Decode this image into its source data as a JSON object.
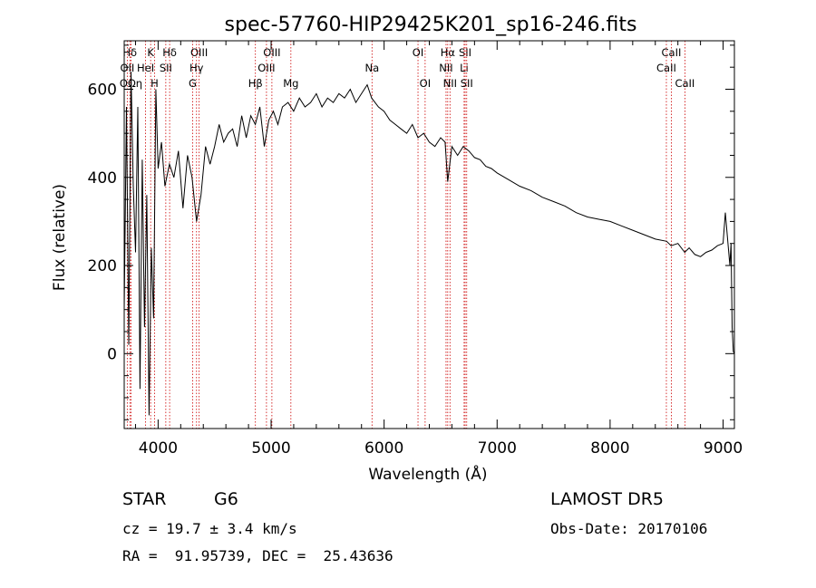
{
  "chart_data": {
    "type": "line",
    "title": "spec-57760-HIP29425K201_sp16-246.fits",
    "xlabel": "Wavelength (Å)",
    "ylabel": "Flux (relative)",
    "xlim": [
      3700,
      9100
    ],
    "ylim": [
      -170,
      710
    ],
    "grid": false,
    "x_ticks": [
      4000,
      5000,
      6000,
      7000,
      8000,
      9000
    ],
    "y_ticks": [
      0,
      200,
      400,
      600
    ],
    "series": [
      {
        "color": "#000000",
        "x": [
          3700,
          3720,
          3740,
          3760,
          3780,
          3800,
          3820,
          3840,
          3860,
          3880,
          3900,
          3920,
          3940,
          3960,
          3980,
          4000,
          4030,
          4060,
          4100,
          4140,
          4180,
          4220,
          4260,
          4300,
          4340,
          4380,
          4420,
          4460,
          4500,
          4540,
          4580,
          4620,
          4660,
          4700,
          4740,
          4780,
          4820,
          4860,
          4900,
          4940,
          4980,
          5020,
          5060,
          5100,
          5150,
          5200,
          5250,
          5300,
          5350,
          5400,
          5450,
          5500,
          5550,
          5600,
          5650,
          5700,
          5750,
          5800,
          5850,
          5890,
          5950,
          6000,
          6050,
          6100,
          6150,
          6200,
          6250,
          6300,
          6350,
          6400,
          6450,
          6500,
          6540,
          6563,
          6600,
          6650,
          6700,
          6750,
          6800,
          6850,
          6900,
          6950,
          7000,
          7100,
          7200,
          7300,
          7400,
          7500,
          7600,
          7700,
          7800,
          7900,
          8000,
          8100,
          8200,
          8300,
          8400,
          8500,
          8540,
          8600,
          8660,
          8700,
          8750,
          8800,
          8850,
          8900,
          8950,
          9000,
          9020,
          9040,
          9060,
          9070,
          9080,
          9090,
          9100
        ],
        "values": [
          100,
          560,
          20,
          640,
          380,
          230,
          560,
          -80,
          440,
          60,
          360,
          -140,
          240,
          80,
          600,
          420,
          480,
          380,
          430,
          400,
          460,
          330,
          450,
          400,
          300,
          360,
          470,
          430,
          470,
          520,
          480,
          500,
          510,
          470,
          540,
          490,
          540,
          520,
          560,
          470,
          530,
          550,
          520,
          560,
          570,
          550,
          580,
          560,
          570,
          590,
          560,
          580,
          570,
          590,
          580,
          600,
          570,
          590,
          610,
          580,
          560,
          550,
          530,
          520,
          510,
          500,
          520,
          490,
          500,
          480,
          470,
          490,
          480,
          390,
          470,
          450,
          470,
          460,
          445,
          440,
          425,
          420,
          410,
          395,
          380,
          370,
          355,
          345,
          335,
          320,
          310,
          305,
          300,
          290,
          280,
          270,
          260,
          255,
          245,
          250,
          230,
          240,
          225,
          220,
          230,
          235,
          245,
          250,
          320,
          260,
          200,
          250,
          60,
          5,
          0
        ]
      }
    ],
    "line_markers": [
      {
        "label": "Hδ",
        "x": 3750,
        "row": 0
      },
      {
        "label": "K",
        "x": 3934,
        "row": 0
      },
      {
        "label": "Hδ",
        "x": 4102,
        "row": 0
      },
      {
        "label": "OIII",
        "x": 4363,
        "row": 0
      },
      {
        "label": "OIII",
        "x": 5007,
        "row": 0
      },
      {
        "label": "OI",
        "x": 6300,
        "row": 0
      },
      {
        "label": "Hα",
        "x": 6563,
        "row": 0
      },
      {
        "label": "SII",
        "x": 6717,
        "row": 0
      },
      {
        "label": "CaII",
        "x": 8542,
        "row": 0
      },
      {
        "label": "OII",
        "x": 3727,
        "row": 1
      },
      {
        "label": "HeI",
        "x": 3889,
        "row": 1
      },
      {
        "label": "SII",
        "x": 4068,
        "row": 1
      },
      {
        "label": "Hγ",
        "x": 4340,
        "row": 1
      },
      {
        "label": "OIII",
        "x": 4959,
        "row": 1
      },
      {
        "label": "Na",
        "x": 5893,
        "row": 1
      },
      {
        "label": "NII",
        "x": 6548,
        "row": 1
      },
      {
        "label": "Li",
        "x": 6708,
        "row": 1
      },
      {
        "label": "CaII",
        "x": 8498,
        "row": 1
      },
      {
        "label": "OΩη",
        "x": 3760,
        "row": 2
      },
      {
        "label": "H",
        "x": 3968,
        "row": 2
      },
      {
        "label": "G",
        "x": 4305,
        "row": 2
      },
      {
        "label": "Hβ",
        "x": 4861,
        "row": 2
      },
      {
        "label": "Mg",
        "x": 5175,
        "row": 2
      },
      {
        "label": "OI",
        "x": 6363,
        "row": 2
      },
      {
        "label": "NII",
        "x": 6583,
        "row": 2
      },
      {
        "label": "SII",
        "x": 6731,
        "row": 2
      },
      {
        "label": "CaII",
        "x": 8662,
        "row": 2
      }
    ]
  },
  "info": {
    "object_class": "STAR",
    "subclass": "G6",
    "survey": "LAMOST DR5",
    "cz": "cz = 19.7 ± 3.4 km/s",
    "obs_date": "Obs-Date: 20170106",
    "coords": "RA =  91.95739, DEC =  25.43636"
  }
}
